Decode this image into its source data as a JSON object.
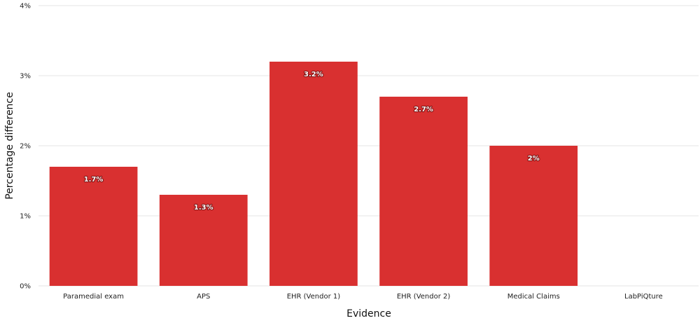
{
  "chart_data": {
    "type": "bar",
    "categories": [
      "Paramedial exam",
      "APS",
      "EHR (Vendor 1)",
      "EHR (Vendor 2)",
      "Medical Claims",
      "LabPiQture"
    ],
    "values": [
      1.7,
      1.3,
      3.2,
      2.7,
      2.0,
      null
    ],
    "data_labels": [
      "1.7%",
      "1.3%",
      "3.2%",
      "2.7%",
      "2%",
      ""
    ],
    "xlabel": "Evidence",
    "ylabel": "Percentage difference",
    "ylim": [
      0,
      4
    ],
    "yticks": [
      0,
      1,
      2,
      3,
      4
    ],
    "ytick_labels": [
      "0%",
      "1%",
      "2%",
      "3%",
      "4%"
    ],
    "grid": true,
    "legend": "none",
    "bar_color": "#d93030"
  }
}
